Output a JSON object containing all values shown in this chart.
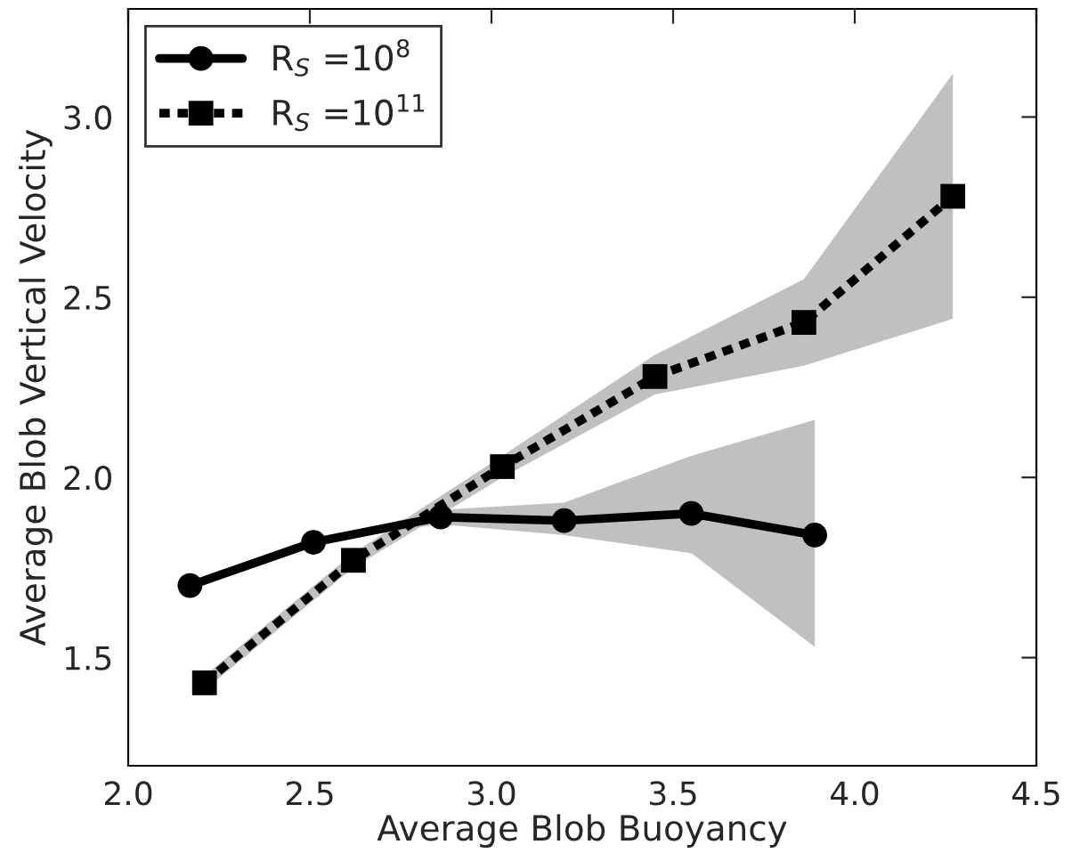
{
  "chart_data": {
    "type": "line",
    "xlabel": "Average Blob Buoyancy",
    "ylabel": "Average Blob Vertical Velocity",
    "xlim": [
      2.0,
      4.5
    ],
    "xticks": [
      {
        "value": 2.0,
        "label": "2.0"
      },
      {
        "value": 2.5,
        "label": "2.5"
      },
      {
        "value": 3.0,
        "label": "3.0"
      },
      {
        "value": 3.5,
        "label": "3.5"
      },
      {
        "value": 4.0,
        "label": "4.0"
      },
      {
        "value": 4.5,
        "label": "4.5"
      }
    ],
    "ylim": [
      1.2,
      3.3
    ],
    "yticks": [
      {
        "value": 1.5,
        "label": "1.5"
      },
      {
        "value": 2.0,
        "label": "2.0"
      },
      {
        "value": 2.5,
        "label": "2.5"
      },
      {
        "value": 3.0,
        "label": "3.0"
      }
    ],
    "grid": false,
    "legend": "top left",
    "series": [
      {
        "name": "R$_{S}$ =10$^{8}$",
        "color": "#000000",
        "marker": "circle",
        "line_style": "solid",
        "x": [
          2.17,
          2.51,
          2.86,
          3.2,
          3.55,
          3.89
        ],
        "values": [
          1.7,
          1.82,
          1.89,
          1.88,
          1.9,
          1.84
        ],
        "lower": [
          1.7,
          1.82,
          1.87,
          1.84,
          1.79,
          1.53
        ],
        "upper": [
          1.7,
          1.82,
          1.91,
          1.93,
          2.06,
          2.16
        ]
      },
      {
        "name": "R$_{S}$ =10$^{11}$",
        "color": "#000000",
        "marker": "square",
        "line_style": "dashed",
        "x": [
          2.21,
          2.62,
          3.03,
          3.45,
          3.86,
          4.27
        ],
        "values": [
          1.43,
          1.77,
          2.03,
          2.28,
          2.43,
          2.78
        ],
        "lower": [
          1.41,
          1.75,
          2.0,
          2.23,
          2.31,
          2.44
        ],
        "upper": [
          1.45,
          1.79,
          2.06,
          2.34,
          2.55,
          3.12
        ]
      }
    ]
  }
}
